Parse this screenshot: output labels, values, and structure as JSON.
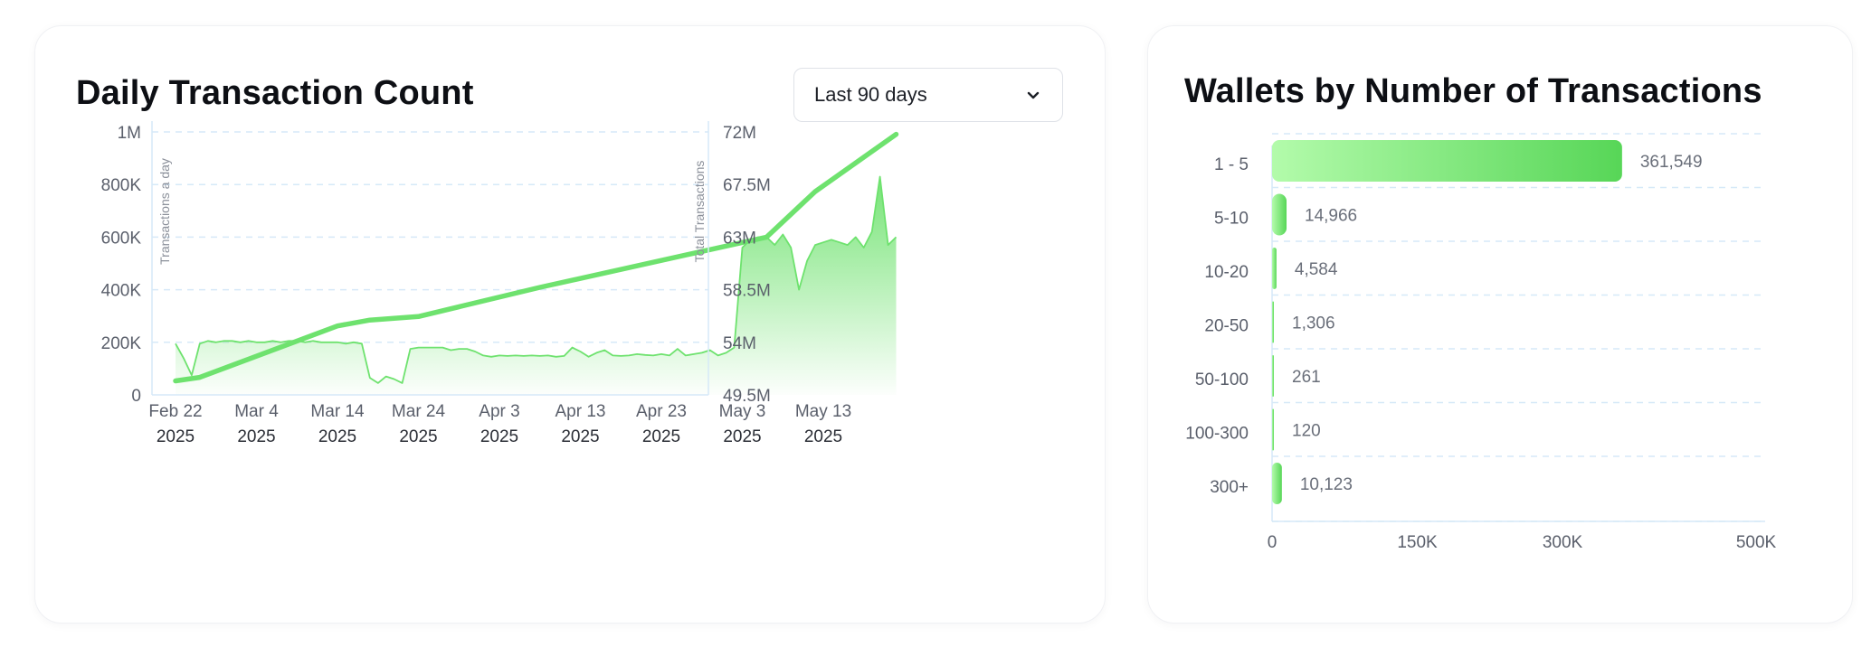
{
  "left_card": {
    "title": "Daily Transaction Count",
    "range_select": {
      "value": "Last 90 days",
      "icon": "chevron-down-icon"
    }
  },
  "right_card": {
    "title": "Wallets by Number of Transactions"
  },
  "colors": {
    "accent": "#5cd65c",
    "line": "#6ee26e",
    "grid": "#d6e9f8",
    "light": "#b8f5b0"
  },
  "chart_data": [
    {
      "type": "area",
      "title": "Daily Transaction Count",
      "ylabel": "Transactions a day",
      "y2label": "Total Transactions",
      "ylim": [
        0,
        1000000
      ],
      "y2lim": [
        49500000,
        72000000
      ],
      "y_ticks": [
        "0",
        "200K",
        "400K",
        "600K",
        "800K",
        "1M"
      ],
      "y2_ticks": [
        "49.5M",
        "54M",
        "58.5M",
        "63M",
        "67.5M",
        "72M"
      ],
      "x_ticks": [
        {
          "label": "Feb 22",
          "year": "2025"
        },
        {
          "label": "Mar 4",
          "year": "2025"
        },
        {
          "label": "Mar 14",
          "year": "2025"
        },
        {
          "label": "Mar 24",
          "year": "2025"
        },
        {
          "label": "Apr 3",
          "year": "2025"
        },
        {
          "label": "Apr 13",
          "year": "2025"
        },
        {
          "label": "Apr 23",
          "year": "2025"
        },
        {
          "label": "May 3",
          "year": "2025"
        },
        {
          "label": "May 13",
          "year": "2025"
        }
      ],
      "grid": true,
      "series": [
        {
          "name": "Transactions a day",
          "axis": "left",
          "kind": "area",
          "x": [
            "2025-02-22",
            "2025-02-23",
            "2025-02-24",
            "2025-02-25",
            "2025-02-26",
            "2025-02-27",
            "2025-02-28",
            "2025-03-01",
            "2025-03-02",
            "2025-03-03",
            "2025-03-04",
            "2025-03-05",
            "2025-03-06",
            "2025-03-07",
            "2025-03-08",
            "2025-03-09",
            "2025-03-10",
            "2025-03-11",
            "2025-03-12",
            "2025-03-13",
            "2025-03-14",
            "2025-03-15",
            "2025-03-16",
            "2025-03-17",
            "2025-03-18",
            "2025-03-19",
            "2025-03-20",
            "2025-03-21",
            "2025-03-22",
            "2025-03-23",
            "2025-03-24",
            "2025-03-25",
            "2025-03-26",
            "2025-03-27",
            "2025-03-28",
            "2025-03-29",
            "2025-03-30",
            "2025-03-31",
            "2025-04-01",
            "2025-04-02",
            "2025-04-03",
            "2025-04-04",
            "2025-04-05",
            "2025-04-06",
            "2025-04-07",
            "2025-04-08",
            "2025-04-09",
            "2025-04-10",
            "2025-04-11",
            "2025-04-12",
            "2025-04-13",
            "2025-04-14",
            "2025-04-15",
            "2025-04-16",
            "2025-04-17",
            "2025-04-18",
            "2025-04-19",
            "2025-04-20",
            "2025-04-21",
            "2025-04-22",
            "2025-04-23",
            "2025-04-24",
            "2025-04-25",
            "2025-04-26",
            "2025-04-27",
            "2025-04-28",
            "2025-04-29",
            "2025-04-30",
            "2025-05-01",
            "2025-05-02",
            "2025-05-03",
            "2025-05-04",
            "2025-05-05",
            "2025-05-06",
            "2025-05-07",
            "2025-05-08",
            "2025-05-09",
            "2025-05-10",
            "2025-05-11",
            "2025-05-12",
            "2025-05-13",
            "2025-05-14",
            "2025-05-15",
            "2025-05-16",
            "2025-05-17",
            "2025-05-18",
            "2025-05-19",
            "2025-05-20",
            "2025-05-21",
            "2025-05-22"
          ],
          "values": [
            195000,
            140000,
            75000,
            195000,
            205000,
            200000,
            205000,
            205000,
            200000,
            205000,
            200000,
            200000,
            205000,
            200000,
            205000,
            205000,
            200000,
            205000,
            200000,
            200000,
            200000,
            195000,
            200000,
            195000,
            65000,
            45000,
            70000,
            60000,
            45000,
            175000,
            180000,
            180000,
            180000,
            180000,
            170000,
            175000,
            175000,
            165000,
            150000,
            145000,
            150000,
            148000,
            150000,
            148000,
            150000,
            148000,
            150000,
            145000,
            148000,
            180000,
            165000,
            145000,
            160000,
            170000,
            150000,
            148000,
            150000,
            155000,
            152000,
            150000,
            155000,
            150000,
            175000,
            150000,
            155000,
            160000,
            170000,
            150000,
            160000,
            180000,
            560000,
            590000,
            600000,
            600000,
            570000,
            610000,
            560000,
            400000,
            510000,
            570000,
            580000,
            590000,
            580000,
            570000,
            600000,
            560000,
            620000,
            830000,
            570000,
            600000
          ]
        },
        {
          "name": "Total Transactions",
          "axis": "right",
          "kind": "line",
          "x": [
            "2025-02-22",
            "2025-02-25",
            "2025-03-14",
            "2025-03-18",
            "2025-03-24",
            "2025-04-08",
            "2025-05-06",
            "2025-05-12",
            "2025-05-22"
          ],
          "values": [
            50700000,
            51000000,
            55400000,
            55900000,
            56200000,
            58700000,
            63000000,
            66900000,
            71800000
          ]
        }
      ]
    },
    {
      "type": "bar",
      "orientation": "horizontal",
      "title": "Wallets by Number of Transactions",
      "categories": [
        "1 - 5",
        "5-10",
        "10-20",
        "20-50",
        "50-100",
        "100-300",
        "300+"
      ],
      "values": [
        361549,
        14966,
        4584,
        1306,
        261,
        120,
        10123
      ],
      "value_labels": [
        "361,549",
        "14,966",
        "4,584",
        "1,306",
        "261",
        "120",
        "10,123"
      ],
      "xlim": [
        0,
        500000
      ],
      "x_ticks": [
        "0",
        "150K",
        "300K",
        "500K"
      ],
      "grid": true
    }
  ]
}
